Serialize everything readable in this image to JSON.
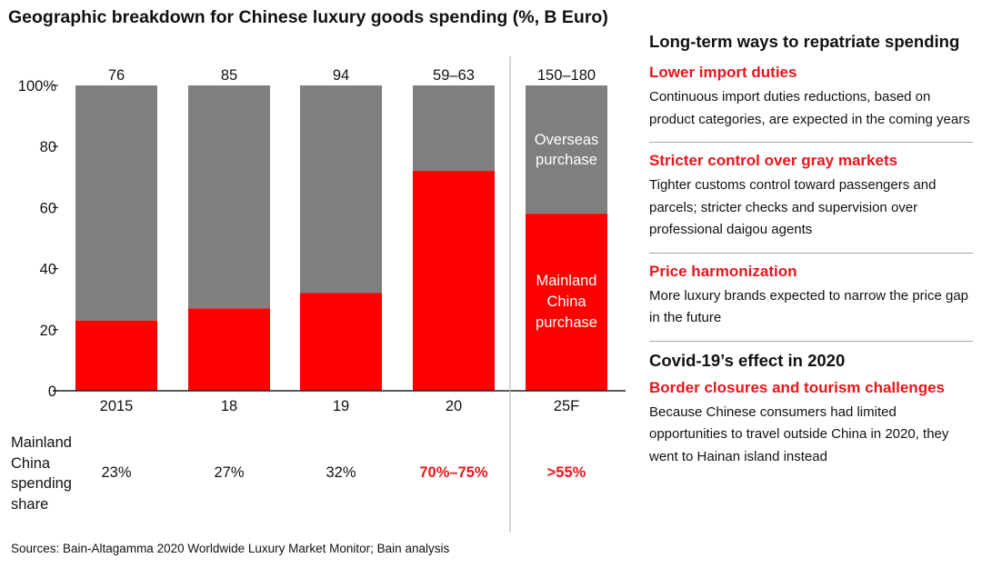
{
  "title": "Geographic breakdown for Chinese luxury goods spending (%, B Euro)",
  "chart_data": {
    "type": "bar",
    "stacked": true,
    "categories": [
      "2015",
      "18",
      "19",
      "20",
      "25F"
    ],
    "totals_label": [
      "76",
      "85",
      "94",
      "59–63",
      "150–180"
    ],
    "series": [
      {
        "name": "Mainland China purchase",
        "color": "#ff0000",
        "values": [
          23,
          27,
          32,
          72,
          58
        ]
      },
      {
        "name": "Overseas purchase",
        "color": "#7f7f7f",
        "values": [
          77,
          73,
          68,
          28,
          42
        ]
      }
    ],
    "yticks": [
      "0",
      "20",
      "40",
      "60",
      "80",
      "100%"
    ],
    "ylim": [
      0,
      100
    ],
    "inbar_labels": {
      "overseas": [
        "Overseas",
        "purchase"
      ],
      "mainland": [
        "Mainland",
        "China",
        "purchase"
      ]
    }
  },
  "share": {
    "label_lines": [
      "Mainland",
      "China",
      "spending",
      "share"
    ],
    "values": [
      "23%",
      "27%",
      "32%",
      "70%–75%",
      ">55%"
    ]
  },
  "sources": "Sources: Bain-Altagamma 2020 Worldwide Luxury Market Monitor; Bain analysis",
  "panel": {
    "heading": "Long-term ways to repatriate spending",
    "items": [
      {
        "title": "Lower import duties",
        "text": "Continuous import duties reductions, based on product categories, are expected in the coming years"
      },
      {
        "title": "Stricter control over gray markets",
        "text": "Tighter customs control toward passengers and parcels; stricter checks and supervision over professional daigou agents"
      },
      {
        "title": "Price harmonization",
        "text": "More luxury brands expected to narrow the price gap in the future"
      }
    ],
    "covid_heading": "Covid-19’s effect in 2020",
    "covid_item": {
      "title": "Border closures and tourism challenges",
      "text": "Because Chinese consumers had limited opportunities to travel outside China in 2020, they went to Hainan island instead"
    }
  }
}
